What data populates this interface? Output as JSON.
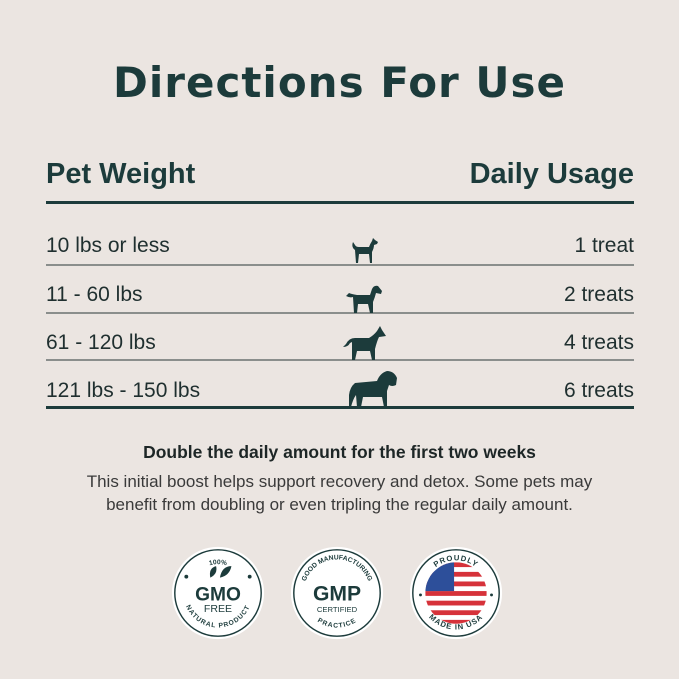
{
  "title": "Directions For Use",
  "table": {
    "headers": {
      "weight": "Pet Weight",
      "usage": "Daily Usage"
    },
    "rows": [
      {
        "weight": "10 lbs or less",
        "usage": "1 treat",
        "icon": "small-dog-icon"
      },
      {
        "weight": "11 - 60 lbs",
        "usage": "2 treats",
        "icon": "medium-dog-icon"
      },
      {
        "weight": "61 - 120 lbs",
        "usage": "4 treats",
        "icon": "large-dog-icon"
      },
      {
        "weight": "121 lbs - 150 lbs",
        "usage": "6 treats",
        "icon": "giant-dog-icon"
      }
    ]
  },
  "note": {
    "headline": "Double the daily amount for the first two weeks",
    "line1": "This initial boost helps support recovery and detox. Some pets may",
    "line2": "benefit from doubling or even tripling the regular daily amount."
  },
  "badges": [
    {
      "top": "100%",
      "main": "GMO",
      "sub": "FREE",
      "bottom": "NATURAL PRODUCT"
    },
    {
      "top": "GOOD MANUFACTURING",
      "main": "GMP",
      "sub": "CERTIFIED",
      "bottom": "PRACTICE"
    },
    {
      "top": "PROUDLY",
      "bottom": "MADE IN USA"
    }
  ],
  "colors": {
    "background": "#ebe5e1",
    "primary": "#1c3b3b",
    "flag_red": "#d6323a",
    "flag_blue": "#2d4f9a"
  }
}
